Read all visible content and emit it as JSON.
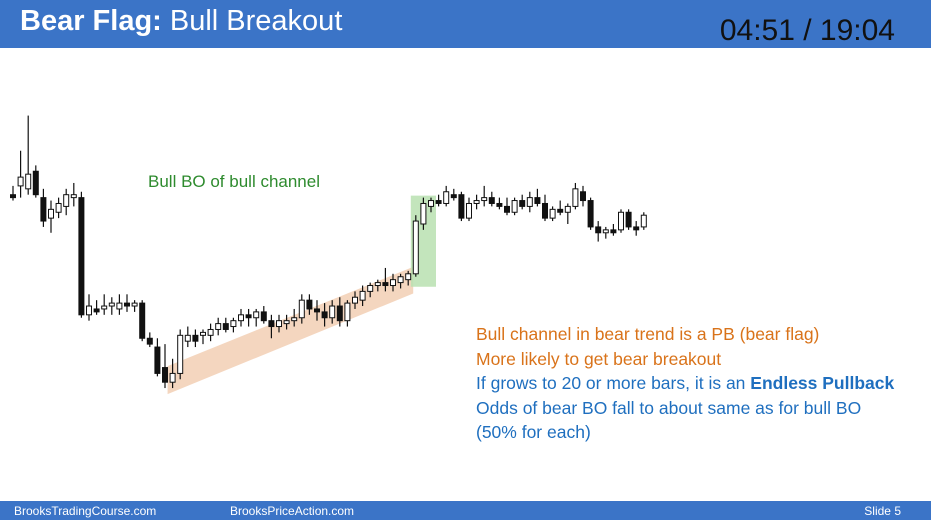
{
  "header": {
    "title_bold": "Bear Flag:",
    "title_rest": " Bull Breakout",
    "timer": "04:51 / 19:04"
  },
  "annotations": {
    "green_label": "Bull BO of bull channel",
    "note_1": "Bull channel in bear trend is a PB (bear flag)",
    "note_2": "More likely to get bear breakout",
    "note_3_prefix": "If grows to 20 or more bars, it is an ",
    "note_3_bold": "Endless Pullback",
    "note_4": "Odds of bear BO fall to about same as for bull BO",
    "note_5": "(50% for each)"
  },
  "footer": {
    "left": "BrooksTradingCourse.com",
    "center": "BrooksPriceAction.com",
    "right": "Slide  5"
  },
  "colors": {
    "header_bg": "#3b74c7",
    "bear_body": "#111111",
    "bull_body": "#ffffff",
    "channel_fill": "#f2cfb4",
    "breakout_fill": "#b9e0b0",
    "label_green": "#2e8b2e",
    "note_orange": "#d9731a",
    "note_blue": "#1f6fbf"
  },
  "chart_data": {
    "type": "candlestick",
    "ylim": [
      0,
      100
    ],
    "grid": false,
    "highlights": [
      {
        "name": "bull channel",
        "from_bar": 21,
        "to_bar": 52,
        "color": "channel"
      },
      {
        "name": "bull breakout",
        "from_bar": 53,
        "to_bar": 55,
        "color": "breakout"
      }
    ],
    "bars": [
      {
        "o": 67,
        "h": 70,
        "l": 65,
        "c": 66
      },
      {
        "o": 70,
        "h": 82,
        "l": 66,
        "c": 73
      },
      {
        "o": 69,
        "h": 94,
        "l": 67,
        "c": 74
      },
      {
        "o": 75,
        "h": 77,
        "l": 66,
        "c": 67
      },
      {
        "o": 66,
        "h": 69,
        "l": 56,
        "c": 58
      },
      {
        "o": 59,
        "h": 65,
        "l": 54,
        "c": 62
      },
      {
        "o": 61,
        "h": 66,
        "l": 59,
        "c": 64
      },
      {
        "o": 63,
        "h": 69,
        "l": 60,
        "c": 67
      },
      {
        "o": 66,
        "h": 71,
        "l": 63,
        "c": 67
      },
      {
        "o": 66,
        "h": 68,
        "l": 25,
        "c": 26
      },
      {
        "o": 26,
        "h": 33,
        "l": 24,
        "c": 29
      },
      {
        "o": 28,
        "h": 31,
        "l": 26,
        "c": 27
      },
      {
        "o": 28,
        "h": 33,
        "l": 26,
        "c": 29
      },
      {
        "o": 29,
        "h": 32,
        "l": 26,
        "c": 30
      },
      {
        "o": 28,
        "h": 33,
        "l": 26,
        "c": 30
      },
      {
        "o": 30,
        "h": 33,
        "l": 27,
        "c": 29
      },
      {
        "o": 29,
        "h": 31,
        "l": 27,
        "c": 30
      },
      {
        "o": 30,
        "h": 31,
        "l": 17,
        "c": 18
      },
      {
        "o": 18,
        "h": 20,
        "l": 15,
        "c": 16
      },
      {
        "o": 15,
        "h": 18,
        "l": 5,
        "c": 6
      },
      {
        "o": 8,
        "h": 16,
        "l": 1,
        "c": 3
      },
      {
        "o": 3,
        "h": 11,
        "l": 1,
        "c": 6
      },
      {
        "o": 6,
        "h": 21,
        "l": 4,
        "c": 19
      },
      {
        "o": 17,
        "h": 22,
        "l": 15,
        "c": 19
      },
      {
        "o": 19,
        "h": 21,
        "l": 15,
        "c": 17
      },
      {
        "o": 19,
        "h": 21,
        "l": 16,
        "c": 20
      },
      {
        "o": 19,
        "h": 23,
        "l": 17,
        "c": 21
      },
      {
        "o": 21,
        "h": 25,
        "l": 19,
        "c": 23
      },
      {
        "o": 23,
        "h": 25,
        "l": 20,
        "c": 21
      },
      {
        "o": 22,
        "h": 25,
        "l": 20,
        "c": 24
      },
      {
        "o": 24,
        "h": 28,
        "l": 22,
        "c": 26
      },
      {
        "o": 26,
        "h": 28,
        "l": 22,
        "c": 25
      },
      {
        "o": 25,
        "h": 28,
        "l": 22,
        "c": 27
      },
      {
        "o": 27,
        "h": 29,
        "l": 23,
        "c": 24
      },
      {
        "o": 24,
        "h": 26,
        "l": 18,
        "c": 22
      },
      {
        "o": 22,
        "h": 26,
        "l": 20,
        "c": 24
      },
      {
        "o": 23,
        "h": 26,
        "l": 21,
        "c": 24
      },
      {
        "o": 24,
        "h": 28,
        "l": 22,
        "c": 25
      },
      {
        "o": 25,
        "h": 33,
        "l": 23,
        "c": 31
      },
      {
        "o": 31,
        "h": 33,
        "l": 26,
        "c": 28
      },
      {
        "o": 28,
        "h": 31,
        "l": 24,
        "c": 27
      },
      {
        "o": 27,
        "h": 30,
        "l": 22,
        "c": 25
      },
      {
        "o": 25,
        "h": 31,
        "l": 23,
        "c": 29
      },
      {
        "o": 29,
        "h": 32,
        "l": 22,
        "c": 24
      },
      {
        "o": 24,
        "h": 31,
        "l": 22,
        "c": 30
      },
      {
        "o": 30,
        "h": 34,
        "l": 28,
        "c": 32
      },
      {
        "o": 31,
        "h": 36,
        "l": 29,
        "c": 34
      },
      {
        "o": 34,
        "h": 37,
        "l": 32,
        "c": 36
      },
      {
        "o": 36,
        "h": 38,
        "l": 34,
        "c": 37
      },
      {
        "o": 37,
        "h": 42,
        "l": 34,
        "c": 36
      },
      {
        "o": 36,
        "h": 40,
        "l": 34,
        "c": 38
      },
      {
        "o": 37,
        "h": 40,
        "l": 35,
        "c": 39
      },
      {
        "o": 38,
        "h": 41,
        "l": 36,
        "c": 40
      },
      {
        "o": 40,
        "h": 60,
        "l": 39,
        "c": 58
      },
      {
        "o": 57,
        "h": 66,
        "l": 55,
        "c": 64
      },
      {
        "o": 63,
        "h": 66,
        "l": 61,
        "c": 65
      },
      {
        "o": 65,
        "h": 67,
        "l": 63,
        "c": 64
      },
      {
        "o": 64,
        "h": 70,
        "l": 63,
        "c": 68
      },
      {
        "o": 67,
        "h": 69,
        "l": 65,
        "c": 66
      },
      {
        "o": 67,
        "h": 68,
        "l": 58,
        "c": 59
      },
      {
        "o": 59,
        "h": 66,
        "l": 58,
        "c": 64
      },
      {
        "o": 64,
        "h": 67,
        "l": 62,
        "c": 65
      },
      {
        "o": 65,
        "h": 70,
        "l": 63,
        "c": 66
      },
      {
        "o": 66,
        "h": 68,
        "l": 63,
        "c": 64
      },
      {
        "o": 64,
        "h": 66,
        "l": 62,
        "c": 63
      },
      {
        "o": 63,
        "h": 66,
        "l": 60,
        "c": 61
      },
      {
        "o": 61,
        "h": 66,
        "l": 60,
        "c": 65
      },
      {
        "o": 65,
        "h": 67,
        "l": 62,
        "c": 63
      },
      {
        "o": 63,
        "h": 68,
        "l": 61,
        "c": 66
      },
      {
        "o": 66,
        "h": 69,
        "l": 63,
        "c": 64
      },
      {
        "o": 64,
        "h": 67,
        "l": 58,
        "c": 59
      },
      {
        "o": 59,
        "h": 63,
        "l": 58,
        "c": 62
      },
      {
        "o": 62,
        "h": 65,
        "l": 60,
        "c": 61
      },
      {
        "o": 61,
        "h": 64,
        "l": 57,
        "c": 63
      },
      {
        "o": 63,
        "h": 71,
        "l": 62,
        "c": 69
      },
      {
        "o": 68,
        "h": 70,
        "l": 63,
        "c": 65
      },
      {
        "o": 65,
        "h": 66,
        "l": 55,
        "c": 56
      },
      {
        "o": 56,
        "h": 58,
        "l": 51,
        "c": 54
      },
      {
        "o": 54,
        "h": 56,
        "l": 52,
        "c": 55
      },
      {
        "o": 55,
        "h": 57,
        "l": 53,
        "c": 54
      },
      {
        "o": 55,
        "h": 62,
        "l": 54,
        "c": 61
      },
      {
        "o": 61,
        "h": 62,
        "l": 55,
        "c": 56
      },
      {
        "o": 56,
        "h": 58,
        "l": 53,
        "c": 55
      },
      {
        "o": 56,
        "h": 61,
        "l": 55,
        "c": 60
      }
    ]
  }
}
